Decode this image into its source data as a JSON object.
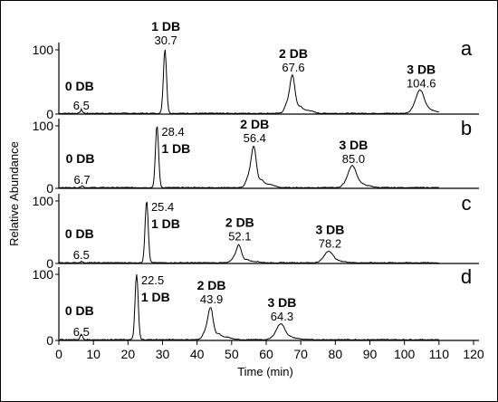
{
  "chart_data": {
    "type": "line",
    "xlabel": "Time (min)",
    "ylabel": "Relative Abundance",
    "xlim": [
      0,
      120
    ],
    "xticks": [
      "0",
      "10",
      "20",
      "30",
      "40",
      "50",
      "60",
      "70",
      "80",
      "90",
      "100",
      "110",
      "120"
    ],
    "ylim": [
      0,
      100
    ],
    "yticks": [
      "0",
      "100"
    ],
    "grid": false,
    "panels": [
      {
        "label": "a",
        "peaks": [
          {
            "group": "0 DB",
            "time": 6.5,
            "time_label": "6.5",
            "height": 5
          },
          {
            "group": "1 DB",
            "time": 30.7,
            "time_label": "30.7",
            "height": 100
          },
          {
            "group": "2 DB",
            "time": 67.6,
            "time_label": "67.6",
            "height": 58
          },
          {
            "group": "3 DB",
            "time": 104.6,
            "time_label": "104.6",
            "height": 33
          }
        ]
      },
      {
        "label": "b",
        "peaks": [
          {
            "group": "0 DB",
            "time": 6.7,
            "time_label": "6.7",
            "height": 3
          },
          {
            "group": "1 DB",
            "time": 28.4,
            "time_label": "28.4",
            "height": 100
          },
          {
            "group": "2 DB",
            "time": 56.4,
            "time_label": "56.4",
            "height": 65
          },
          {
            "group": "3 DB",
            "time": 85.0,
            "time_label": "85.0",
            "height": 32
          }
        ]
      },
      {
        "label": "c",
        "peaks": [
          {
            "group": "0 DB",
            "time": 6.5,
            "time_label": "6.5",
            "height": 2
          },
          {
            "group": "1 DB",
            "time": 25.4,
            "time_label": "25.4",
            "height": 100
          },
          {
            "group": "2 DB",
            "time": 52.1,
            "time_label": "52.1",
            "height": 28
          },
          {
            "group": "3 DB",
            "time": 78.2,
            "time_label": "78.2",
            "height": 17
          }
        ]
      },
      {
        "label": "d",
        "peaks": [
          {
            "group": "0 DB",
            "time": 6.5,
            "time_label": "6.5",
            "height": 8
          },
          {
            "group": "1 DB",
            "time": 22.5,
            "time_label": "22.5",
            "height": 100
          },
          {
            "group": "2 DB",
            "time": 43.9,
            "time_label": "43.9",
            "height": 48
          },
          {
            "group": "3 DB",
            "time": 64.3,
            "time_label": "64.3",
            "height": 22
          }
        ]
      }
    ]
  }
}
